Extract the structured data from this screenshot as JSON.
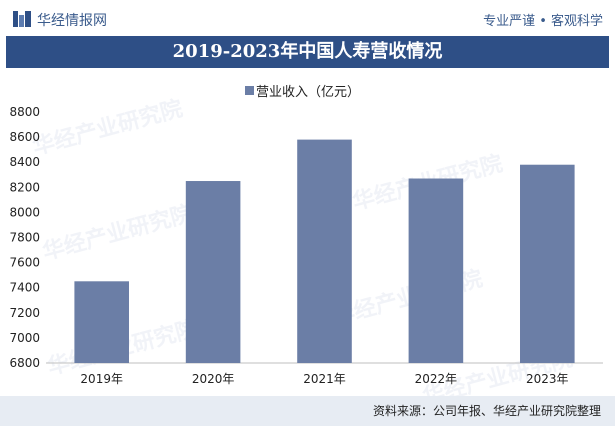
{
  "header": {
    "brand": "华经情报网",
    "slogan": "专业严谨 • 客观科学"
  },
  "footer": {
    "source": "资料来源：公司年报、华经产业研究院整理"
  },
  "watermark": {
    "text": "华经产业研究院"
  },
  "colors": {
    "bar": "#6b7ea6",
    "title_bg": "#2e4f86",
    "footer_bg": "#e7ecf3"
  },
  "icons": {
    "logo": "huajing-logo-icon"
  },
  "chart_data": {
    "type": "bar",
    "title": "2019-2023年中国人寿营收情况",
    "categories": [
      "2019年",
      "2020年",
      "2021年",
      "2022年",
      "2023年"
    ],
    "series": [
      {
        "name": "营业收入（亿元）",
        "values": [
          7451,
          8250,
          8580,
          8270,
          8380
        ]
      }
    ],
    "ylim": [
      6800,
      8800
    ],
    "yticks": [
      6800,
      7000,
      7200,
      7400,
      7600,
      7800,
      8000,
      8200,
      8400,
      8600,
      8800
    ],
    "legend_position": "top-center",
    "grid": false
  }
}
